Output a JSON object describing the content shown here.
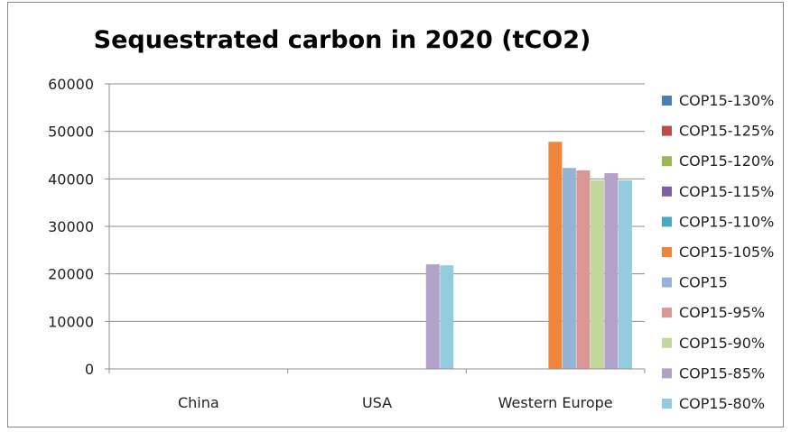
{
  "chart_data": {
    "type": "bar",
    "title": "Sequestrated carbon in 2020 (tCO2)",
    "categories": [
      "China",
      "USA",
      "Western Europe"
    ],
    "ylim": [
      0,
      60000
    ],
    "yticks": [
      0,
      10000,
      20000,
      30000,
      40000,
      50000,
      60000
    ],
    "grid": true,
    "legend_position": "right",
    "series": [
      {
        "name": "COP15-130%",
        "color": "#4a7ebb",
        "values": [
          0,
          0,
          0
        ]
      },
      {
        "name": "COP15-125%",
        "color": "#be4b48",
        "values": [
          0,
          0,
          0
        ]
      },
      {
        "name": "COP15-120%",
        "color": "#98b954",
        "values": [
          0,
          0,
          0
        ]
      },
      {
        "name": "COP15-115%",
        "color": "#7d60a0",
        "values": [
          0,
          0,
          0
        ]
      },
      {
        "name": "COP15-110%",
        "color": "#46aac5",
        "values": [
          0,
          0,
          0
        ]
      },
      {
        "name": "COP15-105%",
        "color": "#f0843a",
        "values": [
          0,
          0,
          47800
        ]
      },
      {
        "name": "COP15",
        "color": "#95b3d7",
        "values": [
          0,
          0,
          42300
        ]
      },
      {
        "name": "COP15-95%",
        "color": "#d99694",
        "values": [
          0,
          0,
          41800
        ]
      },
      {
        "name": "COP15-90%",
        "color": "#c3d69b",
        "values": [
          0,
          0,
          39700
        ]
      },
      {
        "name": "COP15-85%",
        "color": "#b3a2c7",
        "values": [
          0,
          22000,
          41200
        ]
      },
      {
        "name": "COP15-80%",
        "color": "#93cddd",
        "values": [
          0,
          21800,
          39700
        ]
      }
    ]
  }
}
